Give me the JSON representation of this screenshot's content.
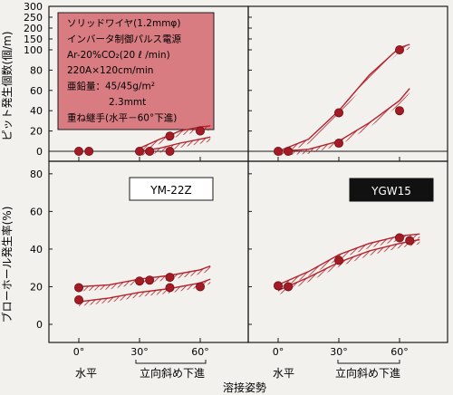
{
  "chart_data": [
    {
      "panel": "pit-count-ym22z",
      "type": "scatter",
      "ylabel": "ピット発生個数(個/m)",
      "ylim": [
        0,
        300
      ],
      "x_tick_labels": [
        "0°",
        "30°",
        "60°"
      ],
      "points": [
        [
          0,
          0
        ],
        [
          5,
          0
        ],
        [
          30,
          0
        ],
        [
          35,
          0
        ],
        [
          45,
          0
        ],
        [
          45,
          15
        ],
        [
          60,
          20
        ]
      ],
      "bands": [
        {
          "name": "upper",
          "x": [
            30,
            40,
            50,
            60,
            65
          ],
          "y": [
            3,
            12,
            20,
            24,
            25
          ]
        },
        {
          "name": "lower",
          "x": [
            30,
            40,
            50,
            60,
            65
          ],
          "y": [
            0,
            3,
            8,
            12,
            14
          ]
        }
      ]
    },
    {
      "panel": "pit-count-ygw15",
      "type": "scatter",
      "ylim": [
        0,
        300
      ],
      "x_tick_labels": [
        "0°",
        "30°",
        "60°"
      ],
      "points": [
        [
          0,
          0
        ],
        [
          5,
          0
        ],
        [
          30,
          38
        ],
        [
          30,
          8
        ],
        [
          60,
          100
        ],
        [
          60,
          40
        ]
      ],
      "bands": [
        {
          "name": "upper",
          "x": [
            0,
            15,
            30,
            45,
            60,
            65
          ],
          "y": [
            0,
            12,
            40,
            75,
            110,
            125
          ]
        },
        {
          "name": "lower",
          "x": [
            0,
            15,
            30,
            45,
            60,
            65
          ],
          "y": [
            0,
            2,
            10,
            28,
            50,
            62
          ]
        }
      ]
    },
    {
      "panel": "blowhole-ym22z",
      "type": "scatter",
      "ylabel": "ブローホール発生率(%)",
      "ylim": [
        0,
        80
      ],
      "x_tick_labels": [
        "0°",
        "30°",
        "60°"
      ],
      "points": [
        [
          0,
          19.5
        ],
        [
          0,
          13
        ],
        [
          30,
          23
        ],
        [
          35,
          23.5
        ],
        [
          45,
          25
        ],
        [
          45,
          19.5
        ],
        [
          60,
          20
        ]
      ],
      "bands": [
        {
          "name": "upper",
          "x": [
            0,
            15,
            30,
            45,
            60,
            65
          ],
          "y": [
            20,
            21,
            24,
            26,
            29,
            31
          ]
        },
        {
          "name": "lower",
          "x": [
            0,
            15,
            30,
            45,
            60,
            65
          ],
          "y": [
            12,
            14,
            17,
            19,
            22,
            24
          ]
        }
      ]
    },
    {
      "panel": "blowhole-ygw15",
      "type": "scatter",
      "ylim": [
        0,
        80
      ],
      "x_tick_labels": [
        "0°",
        "30°",
        "60°"
      ],
      "points": [
        [
          0,
          20.5
        ],
        [
          5,
          20
        ],
        [
          30,
          34
        ],
        [
          60,
          46
        ],
        [
          65,
          44.5
        ]
      ],
      "bands": [
        {
          "name": "upper",
          "x": [
            0,
            15,
            30,
            45,
            60,
            70
          ],
          "y": [
            21,
            28,
            37,
            43,
            47,
            48
          ]
        },
        {
          "name": "lower",
          "x": [
            0,
            15,
            30,
            45,
            60,
            70
          ],
          "y": [
            18,
            25,
            33,
            39,
            43,
            45
          ]
        }
      ]
    }
  ],
  "legend_lines": [
    "ソリッドワイヤ(1.2mmφ)",
    "インバータ制御パルス電源",
    "Ar-20%CO₂(20 ℓ /min)",
    "220A×120cm/min",
    "亜鉛量：45/45g/m²",
    "2.3mmt",
    "重ね継手(水平－60°下進)"
  ],
  "wire_labels": {
    "left": "YM-22Z",
    "right": "YGW15"
  },
  "x_category_labels": {
    "left": [
      "水平",
      "立向斜め下進"
    ],
    "right": [
      "水平",
      "立向斜め下進"
    ]
  },
  "xlabel": "溶接姿勢",
  "top_y_ticks": [
    "300",
    "250",
    "200",
    "150",
    "100",
    "80",
    "60",
    "40",
    "20",
    "0"
  ],
  "bottom_y_ticks": [
    "80",
    "60",
    "40",
    "20",
    "0"
  ],
  "colors": {
    "data": "#b4222c",
    "marker_fill": "#a31b24",
    "legend_box": "#d97c82",
    "axis": "#1a1a1a",
    "background": "#f2f1ee"
  }
}
